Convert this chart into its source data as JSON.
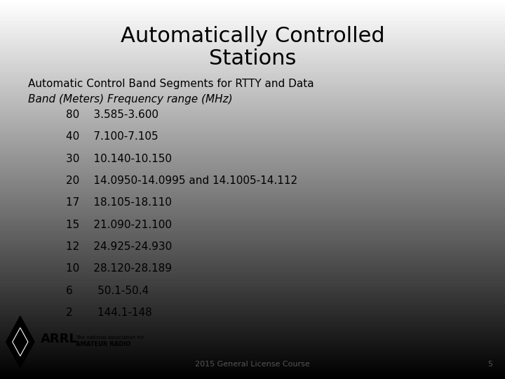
{
  "title_line1": "Automatically Controlled",
  "title_line2": "Stations",
  "subtitle": "Automatic Control Band Segments for RTTY and Data",
  "col_header": "Band (Meters) Frequency range (MHz)",
  "rows": [
    "80  3.585-3.600",
    "40  7.100-7.105",
    "30  10.140-10.150",
    "20  14.0950-14.0995 and 14.1005-14.112",
    "17  18.105-18.110",
    "15  21.090-21.100",
    "12  24.925-24.930",
    "10  28.120-28.189",
    "6    50.1-50.4",
    "2    144.1-148"
  ],
  "footer": "2015 General License Course",
  "page_number": "5",
  "title_fontsize": 22,
  "subtitle_fontsize": 11,
  "header_fontsize": 11,
  "row_fontsize": 11,
  "footer_fontsize": 8
}
